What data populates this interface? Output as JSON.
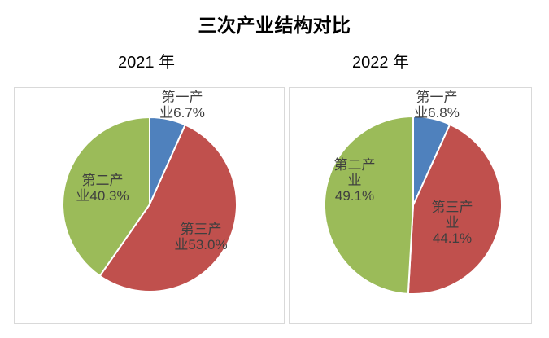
{
  "title": "三次产业结构对比",
  "colors": {
    "first_industry": "#4f81bd",
    "third_industry": "#c0504d",
    "second_industry": "#9bbb59",
    "panel_border": "#d9d9d9",
    "label_text": "#3f3f3f",
    "slice_divider": "#ffffff"
  },
  "chart_data": [
    {
      "type": "pie",
      "title": "2021 年",
      "unit": "%",
      "start_angle": 0,
      "direction": "clockwise",
      "legend": "none",
      "slices": [
        {
          "id": "first-industry",
          "name": "第一产业",
          "value": 6.7,
          "color": "#4f81bd",
          "label_lines": [
            "第一产",
            "业6.7%"
          ]
        },
        {
          "id": "third-industry",
          "name": "第三产业",
          "value": 53.0,
          "color": "#c0504d",
          "label_lines": [
            "第三产",
            "业53.0%"
          ]
        },
        {
          "id": "second-industry",
          "name": "第二产业",
          "value": 40.3,
          "color": "#9bbb59",
          "label_lines": [
            "第二产",
            "业40.3%"
          ]
        }
      ]
    },
    {
      "type": "pie",
      "title": "2022 年",
      "unit": "%",
      "start_angle": 0,
      "direction": "clockwise",
      "legend": "none",
      "slices": [
        {
          "id": "first-industry",
          "name": "第一产业",
          "value": 6.8,
          "color": "#4f81bd",
          "label_lines": [
            "第一产",
            "业6.8%"
          ]
        },
        {
          "id": "third-industry",
          "name": "第三产业",
          "value": 44.1,
          "color": "#c0504d",
          "label_lines": [
            "第三产",
            "业",
            "44.1%"
          ]
        },
        {
          "id": "second-industry",
          "name": "第二产业",
          "value": 49.1,
          "color": "#9bbb59",
          "label_lines": [
            "第二产",
            "业",
            "49.1%"
          ]
        }
      ]
    }
  ]
}
